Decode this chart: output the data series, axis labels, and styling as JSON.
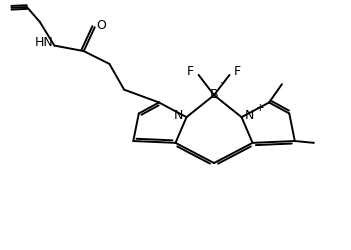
{
  "bg_color": "#ffffff",
  "line_color": "#000000",
  "line_width": 1.4,
  "font_size": 8.5,
  "fig_width": 3.51,
  "fig_height": 2.51,
  "dpi": 100,
  "xlim": [
    0,
    9.5
  ],
  "ylim": [
    0,
    6.8
  ]
}
